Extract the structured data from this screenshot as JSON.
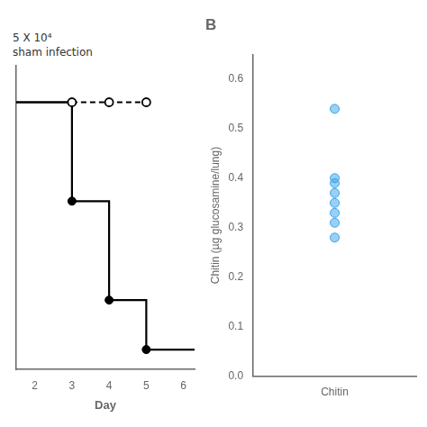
{
  "chart_data": [
    {
      "type": "line",
      "xlabel": "Day",
      "annotations": [
        "5 X 10⁴",
        "sham infection"
      ],
      "series": [
        {
          "type": "line",
          "x": [
            1.5,
            3
          ],
          "values": [
            1.0,
            1.0
          ],
          "color": "#000000",
          "line_style": "solid",
          "marker": "none"
        },
        {
          "type": "line",
          "x": [
            3,
            4,
            5
          ],
          "values": [
            1.0,
            1.0,
            1.0
          ],
          "color": "#000000",
          "line_style": "dashed",
          "marker": "open_circle"
        },
        {
          "type": "step",
          "x": [
            1.5,
            3,
            4,
            5,
            6.3
          ],
          "values": [
            1.0,
            0.6,
            0.2,
            0.0,
            0.0
          ],
          "color": "#000000",
          "line_style": "solid",
          "marker": "none"
        },
        {
          "type": "scatter",
          "x": [
            3,
            4,
            5
          ],
          "values": [
            0.6,
            0.2,
            0.0
          ],
          "color": "#000000",
          "marker": "circle"
        }
      ],
      "xlim": [
        1.5,
        6.3
      ],
      "ylim": [
        -0.08,
        1.15
      ],
      "xticks": [
        2,
        3,
        4,
        5,
        6
      ],
      "yticks": [],
      "tick_labels": "x",
      "grid": false
    },
    {
      "type": "scatter",
      "title": "B",
      "x": [
        "Chitin",
        "Chitin",
        "Chitin",
        "Chitin",
        "Chitin",
        "Chitin",
        "Chitin",
        "Chitin"
      ],
      "values": [
        0.54,
        0.4,
        0.39,
        0.37,
        0.35,
        0.33,
        0.31,
        0.28
      ],
      "ylabel": "Chitin (µg glucosamine/lung)",
      "ylim": [
        0.0,
        0.65
      ],
      "yticks": [
        {
          "value": 0.0,
          "label": "0.0"
        },
        0.1,
        0.2,
        0.3,
        0.4,
        0.5,
        0.6
      ],
      "grid": false
    }
  ]
}
